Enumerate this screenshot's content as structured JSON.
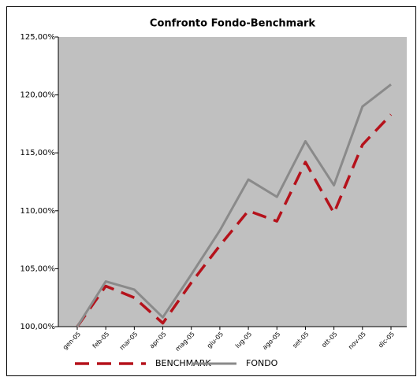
{
  "chart_data": {
    "type": "line",
    "title": "Confronto Fondo-Benchmark",
    "categories": [
      "gen-05",
      "feb-05",
      "mar-05",
      "apr-05",
      "mag-05",
      "giu-05",
      "lug-05",
      "ago-05",
      "set-05",
      "ott-05",
      "nov-05",
      "dic-05"
    ],
    "series": [
      {
        "name": "BENCHMARK",
        "color": "#b5121b",
        "dashed": true,
        "values": [
          100,
          103.5,
          102.5,
          100.3,
          103.8,
          107,
          110,
          109.1,
          114.2,
          109.8,
          115.7,
          118.3
        ]
      },
      {
        "name": "FONDO",
        "color": "#8a8a8a",
        "dashed": false,
        "values": [
          100,
          103.9,
          103.2,
          100.8,
          104.5,
          108.3,
          112.7,
          111.2,
          116,
          112.2,
          119,
          120.9
        ]
      }
    ],
    "ylim": [
      100,
      125
    ],
    "yticks": [
      {
        "value": 100,
        "label": "100,00%"
      },
      {
        "value": 105,
        "label": "105,00%"
      },
      {
        "value": 110,
        "label": "110,00%"
      },
      {
        "value": 115,
        "label": "115,00%"
      },
      {
        "value": 120,
        "label": "120,00%"
      },
      {
        "value": 125,
        "label": "125,00%"
      }
    ],
    "legend": "bottom"
  }
}
